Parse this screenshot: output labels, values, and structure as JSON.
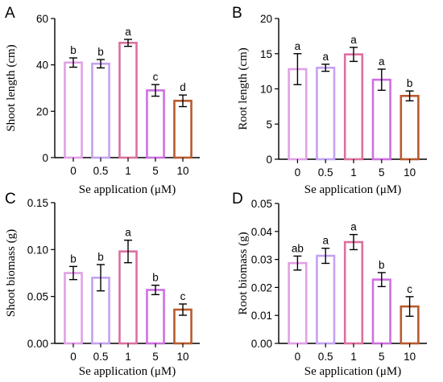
{
  "chart_data": [
    {
      "panel": "A",
      "type": "bar",
      "categories": [
        "0",
        "0.5",
        "1",
        "5",
        "10"
      ],
      "values": [
        41,
        40.5,
        49.5,
        29,
        24.5
      ],
      "errors": [
        2,
        1.8,
        1.5,
        2.5,
        2.5
      ],
      "sig_letters": [
        "b",
        "b",
        "a",
        "c",
        "d"
      ],
      "xlabel": "Se application (μM)",
      "ylabel": "Shoot length (cm)",
      "ylim": [
        0,
        60
      ],
      "yticks": [
        "0",
        "20",
        "40",
        "60"
      ],
      "colors": [
        "#e1a0e6",
        "#c4a2f2",
        "#dd6fa0",
        "#cf6fe0",
        "#b85a2e"
      ]
    },
    {
      "panel": "B",
      "type": "bar",
      "categories": [
        "0",
        "0.5",
        "1",
        "5",
        "10"
      ],
      "values": [
        12.8,
        13,
        14.9,
        11.3,
        9
      ],
      "errors": [
        2.2,
        0.5,
        1,
        1.5,
        0.7
      ],
      "sig_letters": [
        "a",
        "a",
        "a",
        "a",
        "b"
      ],
      "xlabel": "Se application (μM)",
      "ylabel": "Root length (cm)",
      "ylim": [
        0,
        20
      ],
      "yticks": [
        "0",
        "5",
        "10",
        "15",
        "20"
      ],
      "colors": [
        "#e1a0e6",
        "#c4a2f2",
        "#dd6fa0",
        "#cf6fe0",
        "#b85a2e"
      ]
    },
    {
      "panel": "C",
      "type": "bar",
      "categories": [
        "0",
        "0.5",
        "1",
        "5",
        "10"
      ],
      "values": [
        0.075,
        0.07,
        0.098,
        0.057,
        0.036
      ],
      "errors": [
        0.007,
        0.014,
        0.012,
        0.005,
        0.006
      ],
      "sig_letters": [
        "b",
        "b",
        "a",
        "b",
        "c"
      ],
      "xlabel": "Se application (μM)",
      "ylabel": "Shoot biomass (g)",
      "ylim": [
        0,
        0.15
      ],
      "yticks": [
        "0.00",
        "0.05",
        "0.10",
        "0.15"
      ],
      "colors": [
        "#e1a0e6",
        "#c4a2f2",
        "#dd6fa0",
        "#cf6fe0",
        "#b85a2e"
      ]
    },
    {
      "panel": "D",
      "type": "bar",
      "categories": [
        "0",
        "0.5",
        "1",
        "5",
        "10"
      ],
      "values": [
        0.0287,
        0.0313,
        0.0362,
        0.0228,
        0.0132
      ],
      "errors": [
        0.0025,
        0.0027,
        0.0027,
        0.0025,
        0.0035
      ],
      "sig_letters": [
        "ab",
        "a",
        "a",
        "b",
        "c"
      ],
      "xlabel": "Se application (μM)",
      "ylabel": "Root biomass (g)",
      "ylim": [
        0,
        0.05
      ],
      "yticks": [
        "0.00",
        "0.01",
        "0.02",
        "0.03",
        "0.04",
        "0.05"
      ],
      "colors": [
        "#e1a0e6",
        "#c4a2f2",
        "#dd6fa0",
        "#cf6fe0",
        "#b85a2e"
      ]
    }
  ]
}
